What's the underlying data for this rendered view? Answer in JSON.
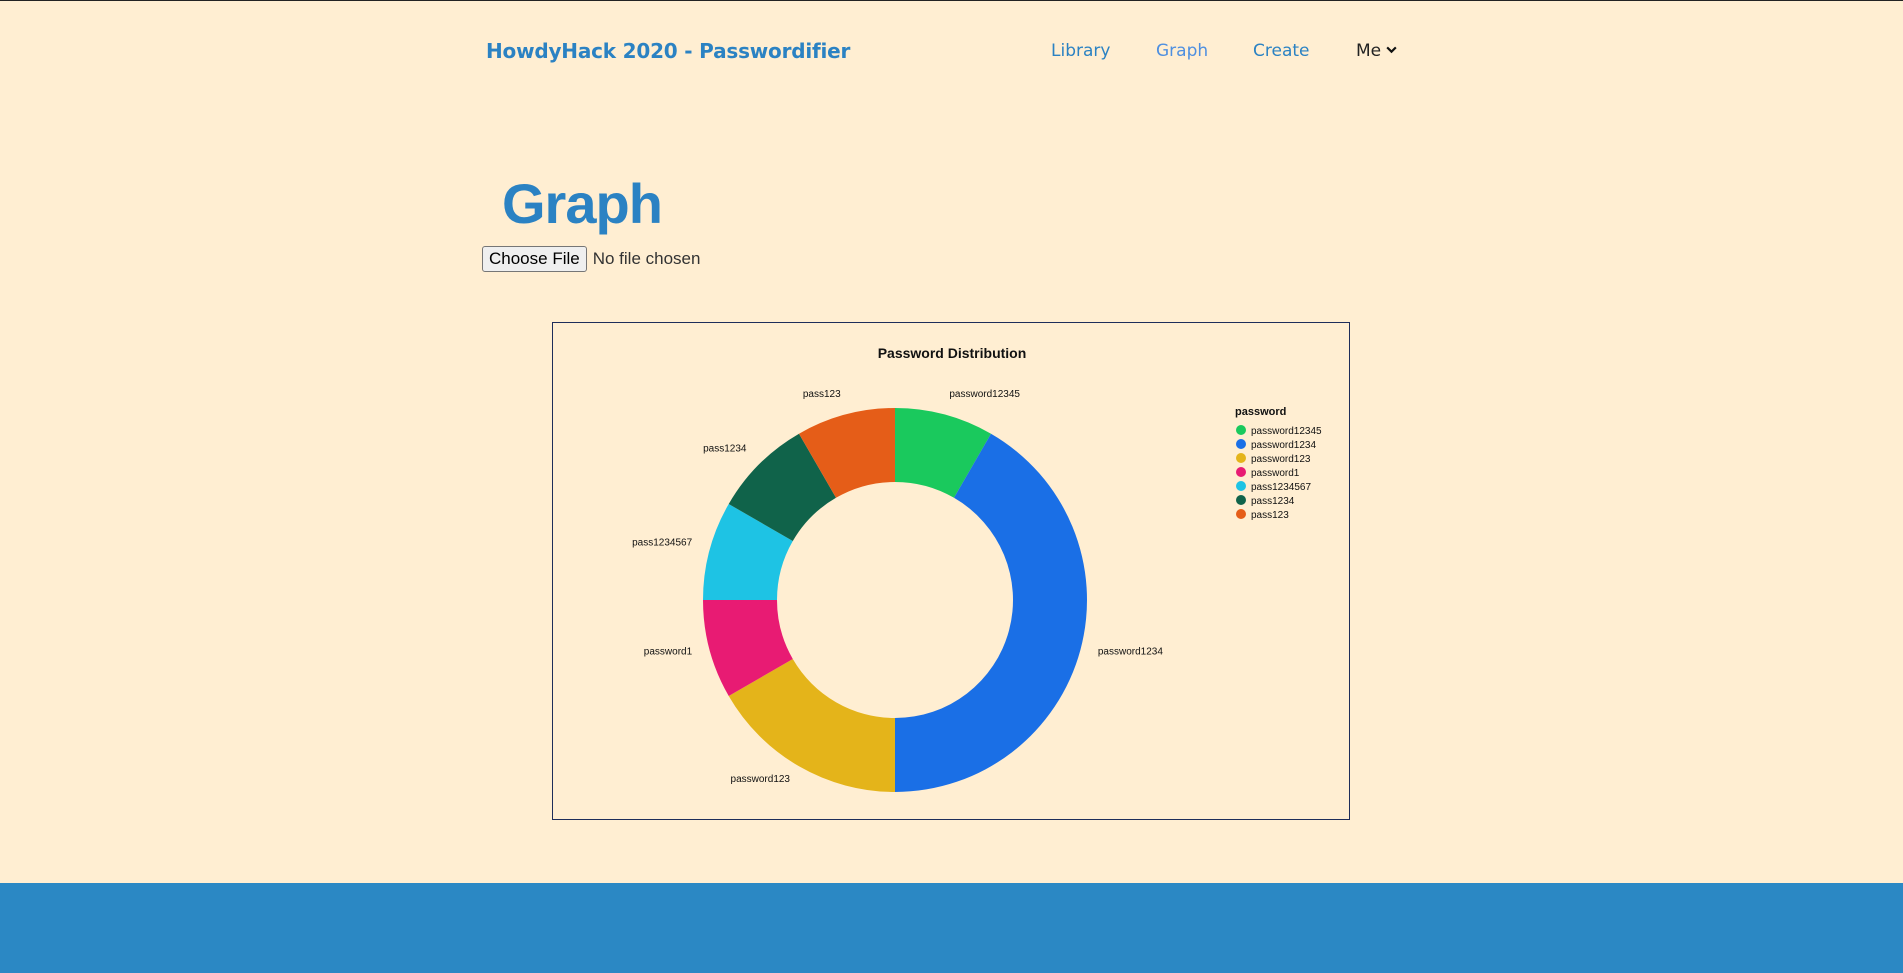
{
  "nav": {
    "brand": "HowdyHack 2020 - Passwordifier",
    "links": [
      "Library",
      "Graph",
      "Create"
    ],
    "me": "Me"
  },
  "page": {
    "title": "Graph",
    "file_button": "Choose File",
    "file_status": "No file chosen"
  },
  "chart_data": {
    "type": "pie",
    "donut": true,
    "title": "Password Distribution",
    "legend_title": "password",
    "legend_position": "top-right",
    "slices": [
      {
        "label": "password12345",
        "value": 1,
        "color": "#1ac95d"
      },
      {
        "label": "password1234",
        "value": 5,
        "color": "#1a6fe6"
      },
      {
        "label": "password123",
        "value": 2,
        "color": "#e4b41a"
      },
      {
        "label": "password1",
        "value": 1,
        "color": "#e81b73"
      },
      {
        "label": "pass1234567",
        "value": 1,
        "color": "#1ec3e4"
      },
      {
        "label": "pass1234",
        "value": 1,
        "color": "#10634a"
      },
      {
        "label": "pass123",
        "value": 1,
        "color": "#e55d18"
      }
    ]
  }
}
